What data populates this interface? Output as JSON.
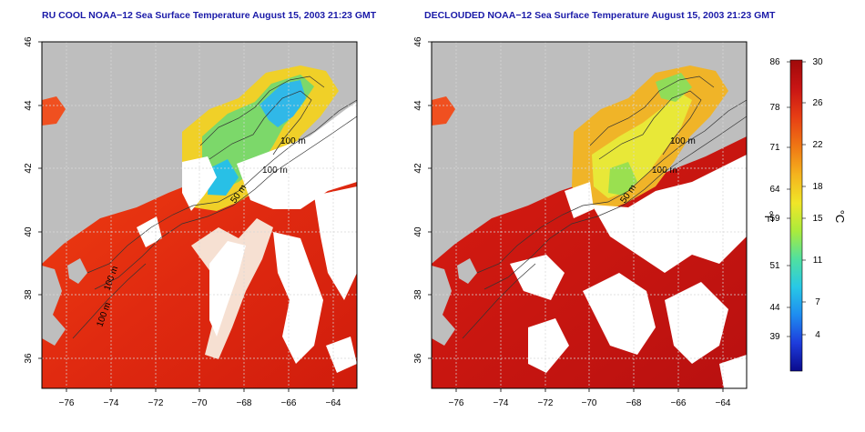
{
  "panels": [
    {
      "id": "left",
      "title": "RU COOL NOAA−12 Sea Surface Temperature August 15, 2003 21:23 GMT",
      "contour_labels": [
        "100 m",
        "100 m",
        "50 m",
        "100 m",
        "100 m"
      ]
    },
    {
      "id": "right",
      "title": "DECLOUDED NOAA−12 Sea Surface Temperature August 15, 2003 21:23 GMT",
      "contour_labels": [
        "100 m",
        "100 m",
        "50 m"
      ]
    }
  ],
  "axes": {
    "x_ticks": [
      "−76",
      "−74",
      "−72",
      "−70",
      "−68",
      "−66",
      "−64"
    ],
    "y_ticks": [
      "46",
      "44",
      "42",
      "40",
      "38",
      "36"
    ]
  },
  "colorbar": {
    "fahrenheit_ticks": [
      "86",
      "78",
      "71",
      "64",
      "59",
      "51",
      "44",
      "39"
    ],
    "celsius_ticks": [
      "30",
      "26",
      "22",
      "18",
      "15",
      "11",
      "7",
      "4"
    ],
    "fahrenheit_unit": "°F",
    "celsius_unit": "°C",
    "colors": [
      "#0a0a8c",
      "#1e3cdc",
      "#1e8cf0",
      "#28c8e6",
      "#50e0a0",
      "#aaeb3c",
      "#f0e628",
      "#f5b41e",
      "#f07814",
      "#e63c14",
      "#c81414",
      "#a00a0a"
    ]
  },
  "map_colors": {
    "land": "#bebebe",
    "cloud": "#ffffff",
    "grid": "#cccccc"
  }
}
